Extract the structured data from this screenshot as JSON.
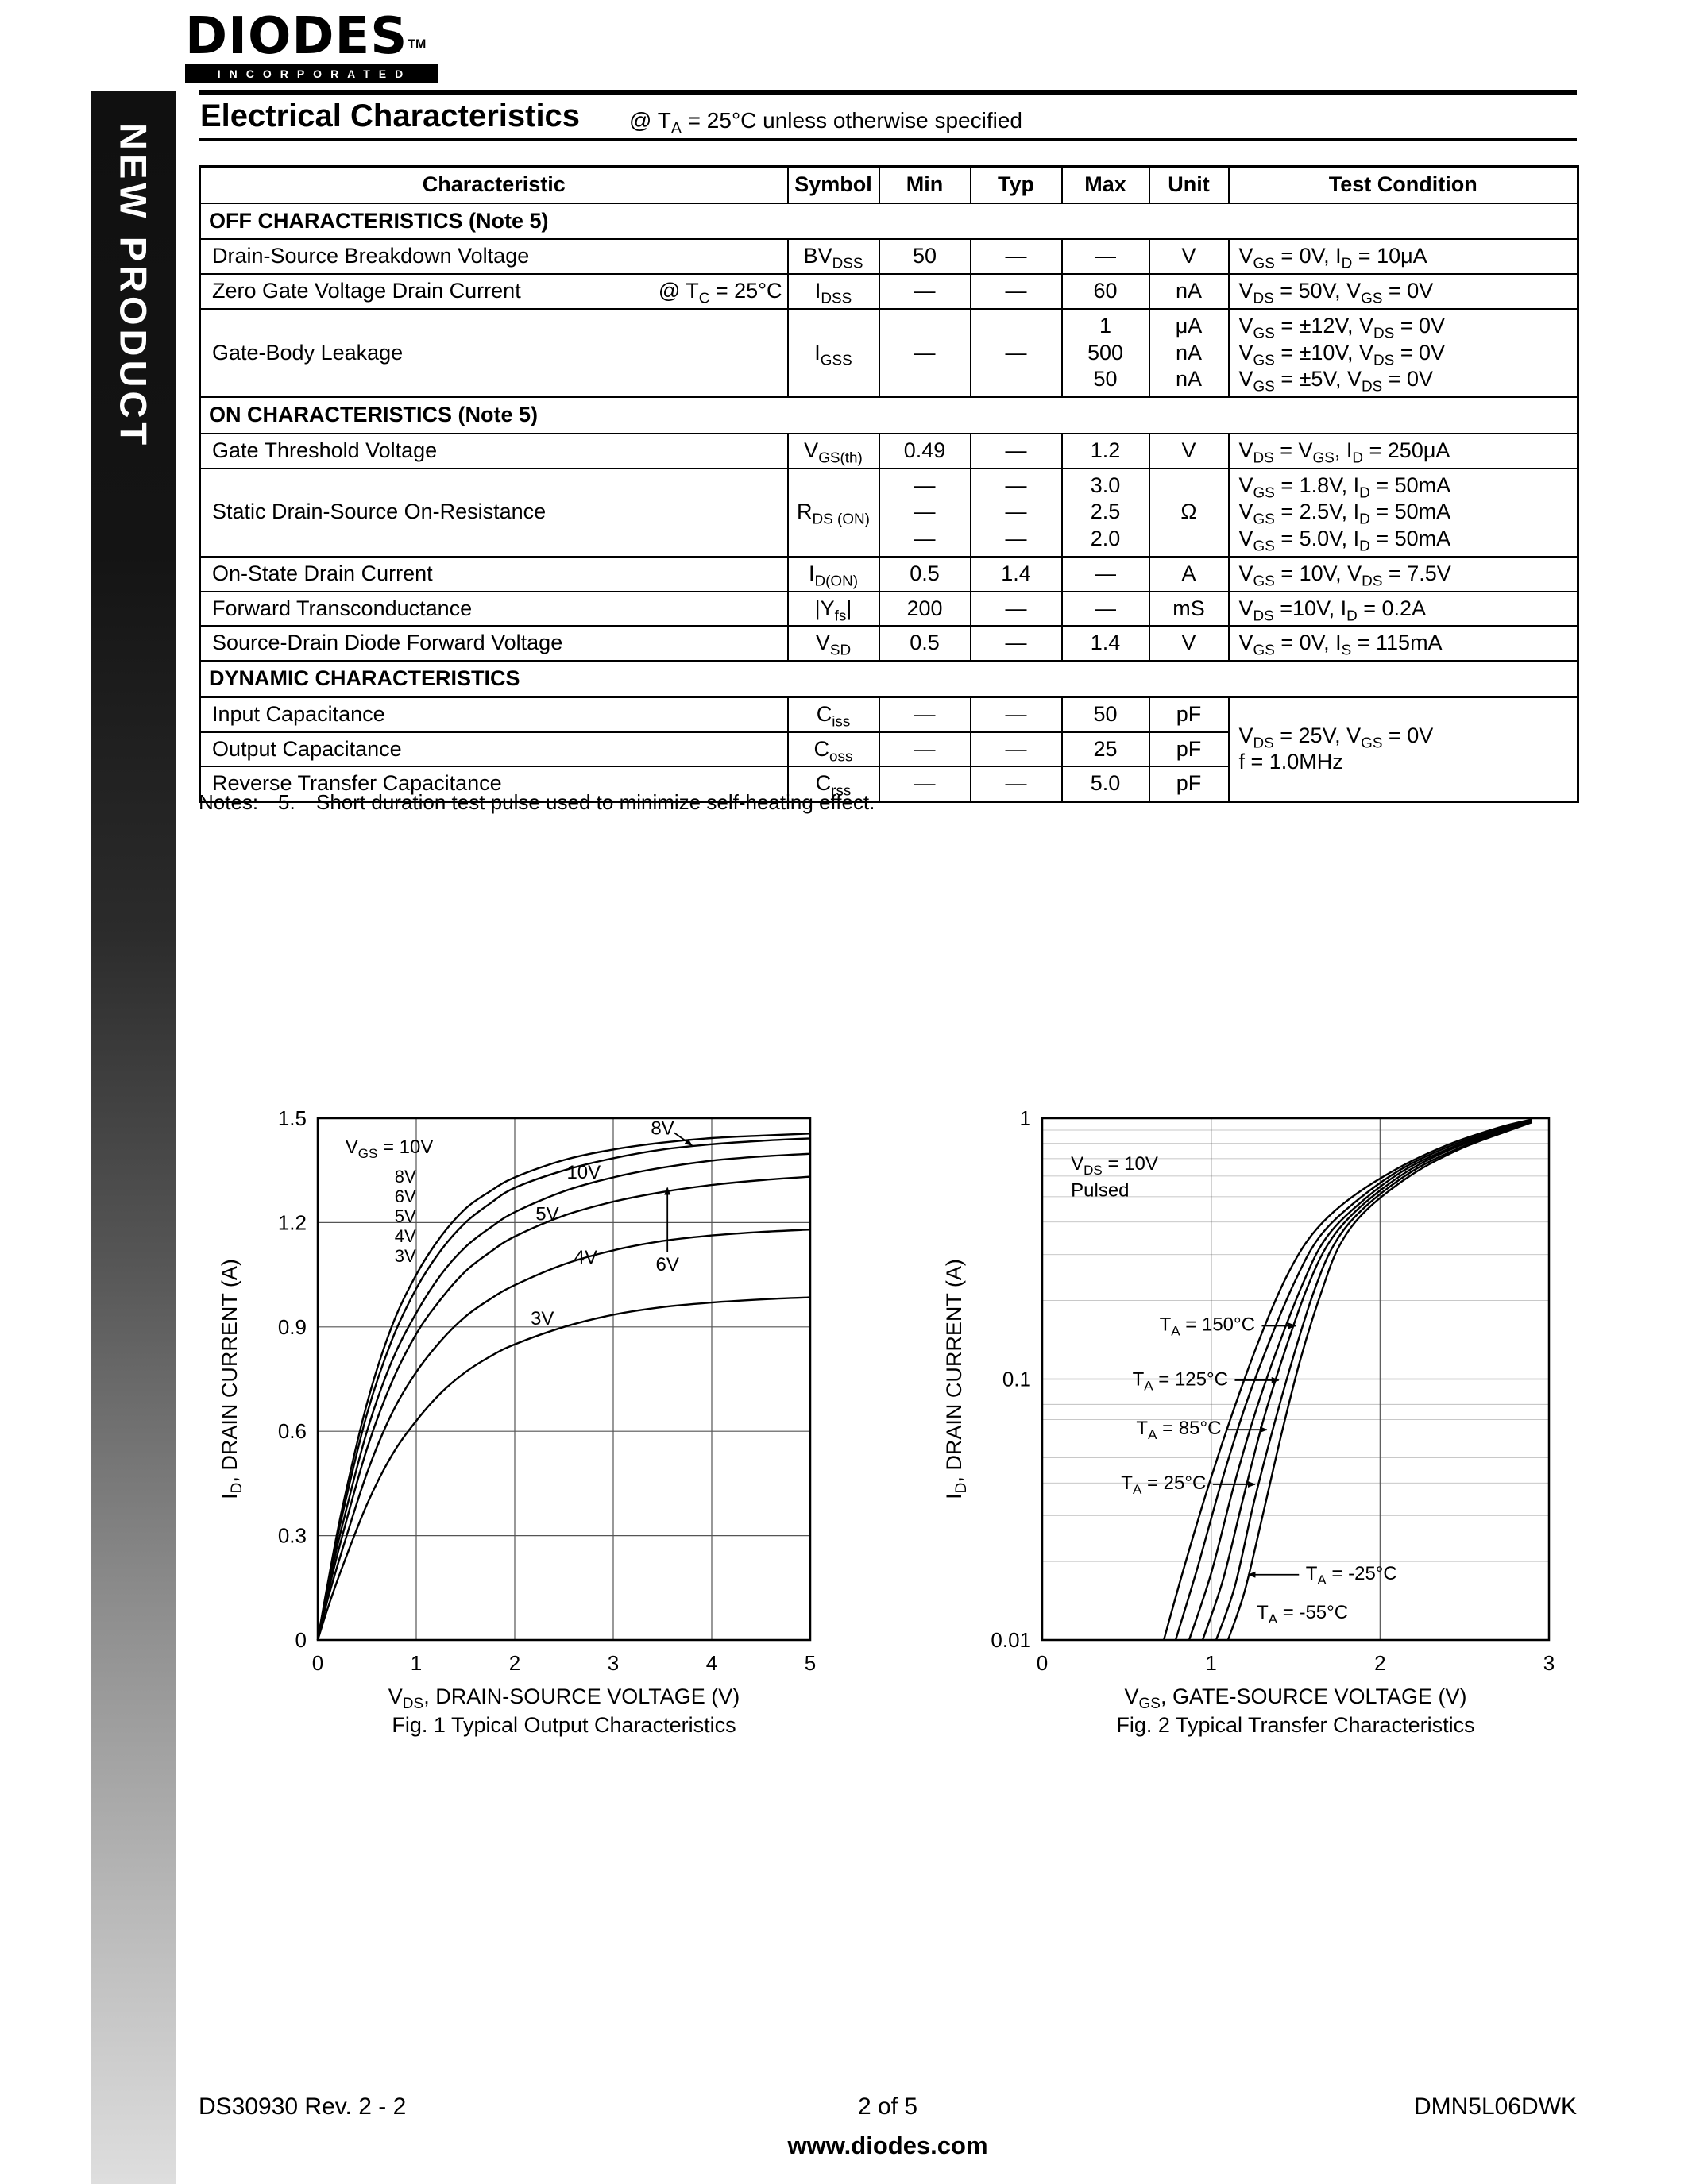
{
  "sidebar": {
    "label": "NEW PRODUCT"
  },
  "logo": {
    "brand": "DIODES",
    "tm": "TM",
    "incorporated": "INCORPORATED"
  },
  "header": {
    "title": "Electrical Characteristics",
    "condition": "@ T~A~ = 25°C unless otherwise specified"
  },
  "table": {
    "columns": [
      "Characteristic",
      "Symbol",
      "Min",
      "Typ",
      "Max",
      "Unit",
      "Test Condition"
    ],
    "rows": [
      {
        "type": "section",
        "label": "OFF CHARACTERISTICS (Note 5)"
      },
      {
        "type": "data",
        "characteristic": "Drain-Source Breakdown Voltage",
        "symbol": "BV~DSS~",
        "min": "50",
        "typ": "—",
        "max": "—",
        "unit": "V",
        "cond": [
          "V~GS~ = 0V, I~D~ = 10μA"
        ]
      },
      {
        "type": "data",
        "characteristic": "Zero Gate Voltage Drain Current",
        "char_note": "@ T~C~ = 25°C",
        "symbol": "I~DSS~",
        "min": "—",
        "typ": "—",
        "max": "60",
        "unit": "nA",
        "cond": [
          "V~DS~ = 50V, V~GS~ = 0V"
        ]
      },
      {
        "type": "data",
        "characteristic": "Gate-Body Leakage",
        "symbol": "I~GSS~",
        "min": "—",
        "typ": "—",
        "max": [
          "1",
          "500",
          "50"
        ],
        "unit": [
          "μA",
          "nA",
          "nA"
        ],
        "cond": [
          "V~GS~ = ±12V, V~DS~ = 0V",
          "V~GS~ = ±10V, V~DS~ = 0V",
          "V~GS~ = ±5V, V~DS~ = 0V"
        ]
      },
      {
        "type": "section",
        "label": "ON CHARACTERISTICS (Note 5)"
      },
      {
        "type": "data",
        "characteristic": "Gate Threshold Voltage",
        "symbol": "V~GS(th)~",
        "min": "0.49",
        "typ": "—",
        "max": "1.2",
        "unit": "V",
        "cond": [
          "V~DS~ = V~GS~, I~D~ = 250μA"
        ]
      },
      {
        "type": "data",
        "characteristic": "Static Drain-Source On-Resistance",
        "symbol": "R~DS (ON)~",
        "min": [
          "—",
          "—",
          "—"
        ],
        "typ": [
          "—",
          "—",
          "—"
        ],
        "max": [
          "3.0",
          "2.5",
          "2.0"
        ],
        "unit": "Ω",
        "cond": [
          "V~GS~ = 1.8V, I~D~ = 50mA",
          "V~GS~ = 2.5V, I~D~ = 50mA",
          "V~GS~ = 5.0V, I~D~ = 50mA"
        ]
      },
      {
        "type": "data",
        "characteristic": "On-State Drain Current",
        "symbol": "I~D(ON)~",
        "min": "0.5",
        "typ": "1.4",
        "max": "—",
        "unit": "A",
        "cond": [
          "V~GS~ = 10V, V~DS~ = 7.5V"
        ]
      },
      {
        "type": "data",
        "characteristic": "Forward Transconductance",
        "symbol": "|Y~fs~|",
        "min": "200",
        "typ": "—",
        "max": "—",
        "unit": "mS",
        "cond": [
          "V~DS~ =10V, I~D~ = 0.2A"
        ]
      },
      {
        "type": "data",
        "characteristic": "Source-Drain Diode Forward Voltage",
        "symbol": "V~SD~",
        "min": "0.5",
        "typ": "—",
        "max": "1.4",
        "unit": "V",
        "cond": [
          "V~GS~ = 0V, I~S~ = 115mA"
        ]
      },
      {
        "type": "section",
        "label": "DYNAMIC CHARACTERISTICS"
      },
      {
        "type": "data",
        "characteristic": "Input Capacitance",
        "symbol": "C~iss~",
        "min": "—",
        "typ": "—",
        "max": "50",
        "unit": "pF",
        "cond": [
          "V~DS~ = 25V, V~GS~ = 0V",
          "f = 1.0MHz"
        ],
        "cond_rowspan": 3
      },
      {
        "type": "data",
        "characteristic": "Output Capacitance",
        "symbol": "C~oss~",
        "min": "—",
        "typ": "—",
        "max": "25",
        "unit": "pF",
        "cond": null
      },
      {
        "type": "data",
        "characteristic": "Reverse Transfer Capacitance",
        "symbol": "C~rss~",
        "min": "—",
        "typ": "—",
        "max": "5.0",
        "unit": "pF",
        "cond": null
      }
    ]
  },
  "notes": {
    "label": "Notes:",
    "items": [
      {
        "num": "5.",
        "text": "Short duration test pulse used to minimize self-heating effect."
      }
    ]
  },
  "footer": {
    "doc": "DS30930 Rev. 2 - 2",
    "page": "2 of 5",
    "part": "DMN5L06DWK",
    "site": "www.diodes.com"
  },
  "chart_data": [
    {
      "type": "line",
      "name": "typical-output-characteristics",
      "fig_caption": "Fig. 1  Typical Output Characteristics",
      "xlabel": "V~DS~, DRAIN-SOURCE VOLTAGE (V)",
      "ylabel": "I~D~, DRAIN CURRENT (A)",
      "xlim": [
        0,
        5
      ],
      "ylim": [
        0,
        1.5
      ],
      "ylog": false,
      "xticks": [
        0,
        1,
        2,
        3,
        4,
        5
      ],
      "yticks": [
        0,
        0.3,
        0.6,
        0.9,
        1.2,
        1.5
      ],
      "grid": true,
      "legend": {
        "title": "V~GS~ = 10V",
        "items": [
          "8V",
          "6V",
          "5V",
          "4V",
          "3V"
        ],
        "x": 0.28,
        "y": 1.4,
        "item_x": 0.78,
        "item_y": 1.315,
        "dy": 0.057
      },
      "series": [
        {
          "name": "VGS = 10V",
          "x": [
            0,
            0.1,
            0.25,
            0.5,
            0.75,
            1,
            1.25,
            1.5,
            1.75,
            2,
            2.5,
            3,
            3.5,
            4,
            4.5,
            5
          ],
          "y": [
            0,
            0.16,
            0.38,
            0.68,
            0.9,
            1.05,
            1.16,
            1.24,
            1.29,
            1.33,
            1.38,
            1.41,
            1.43,
            1.443,
            1.45,
            1.456
          ]
        },
        {
          "name": "VGS = 8V",
          "x": [
            0,
            0.1,
            0.25,
            0.5,
            0.75,
            1,
            1.25,
            1.5,
            1.75,
            2,
            2.5,
            3,
            3.5,
            4,
            4.5,
            5
          ],
          "y": [
            0,
            0.155,
            0.36,
            0.65,
            0.86,
            1.01,
            1.12,
            1.2,
            1.255,
            1.3,
            1.35,
            1.385,
            1.41,
            1.425,
            1.435,
            1.442
          ]
        },
        {
          "name": "VGS = 6V",
          "x": [
            0,
            0.1,
            0.25,
            0.5,
            0.75,
            1,
            1.25,
            1.5,
            1.75,
            2,
            2.5,
            3,
            3.5,
            4,
            4.5,
            5
          ],
          "y": [
            0,
            0.145,
            0.33,
            0.6,
            0.8,
            0.94,
            1.05,
            1.13,
            1.185,
            1.23,
            1.29,
            1.33,
            1.358,
            1.378,
            1.39,
            1.398
          ]
        },
        {
          "name": "VGS = 5V",
          "x": [
            0,
            0.1,
            0.25,
            0.5,
            0.75,
            1,
            1.25,
            1.5,
            1.75,
            2,
            2.5,
            3,
            3.5,
            4,
            4.5,
            5
          ],
          "y": [
            0,
            0.13,
            0.3,
            0.55,
            0.74,
            0.88,
            0.98,
            1.06,
            1.115,
            1.16,
            1.22,
            1.26,
            1.288,
            1.308,
            1.322,
            1.332
          ]
        },
        {
          "name": "VGS = 4V",
          "x": [
            0,
            0.1,
            0.25,
            0.5,
            0.75,
            1,
            1.25,
            1.5,
            1.75,
            2,
            2.5,
            3,
            3.5,
            4,
            4.5,
            5
          ],
          "y": [
            0,
            0.115,
            0.26,
            0.48,
            0.65,
            0.77,
            0.86,
            0.93,
            0.98,
            1.02,
            1.08,
            1.12,
            1.147,
            1.163,
            1.173,
            1.18
          ]
        },
        {
          "name": "VGS = 3V",
          "x": [
            0,
            0.1,
            0.25,
            0.5,
            0.75,
            1,
            1.25,
            1.5,
            1.75,
            2,
            2.5,
            3,
            3.5,
            4,
            4.5,
            5
          ],
          "y": [
            0,
            0.09,
            0.21,
            0.39,
            0.53,
            0.63,
            0.71,
            0.77,
            0.815,
            0.85,
            0.9,
            0.935,
            0.957,
            0.97,
            0.979,
            0.985
          ]
        }
      ],
      "annotations": [
        {
          "text": "8V",
          "x": 3.5,
          "y": 1.472,
          "anchor": "middle"
        },
        {
          "text": "10V",
          "x": 2.7,
          "y": 1.345,
          "anchor": "middle"
        },
        {
          "text": "5V",
          "x": 2.33,
          "y": 1.225,
          "anchor": "middle"
        },
        {
          "text": "4V",
          "x": 2.72,
          "y": 1.1,
          "anchor": "middle"
        },
        {
          "text": "6V",
          "x": 3.55,
          "y": 1.08,
          "anchor": "middle"
        },
        {
          "text": "3V",
          "x": 2.28,
          "y": 0.925,
          "anchor": "middle"
        }
      ],
      "arrows": [
        {
          "x1": 3.62,
          "y1": 1.458,
          "x2": 3.8,
          "y2": 1.422
        },
        {
          "x1": 3.55,
          "y1": 1.115,
          "x2": 3.55,
          "y2": 1.3
        }
      ]
    },
    {
      "type": "line",
      "name": "typical-transfer-characteristics",
      "fig_caption": "Fig. 2  Typical Transfer Characteristics",
      "xlabel": "V~GS~, GATE-SOURCE VOLTAGE (V)",
      "ylabel": "I~D~, DRAIN CURRENT (A)",
      "xlim": [
        0,
        3
      ],
      "ylim": [
        0.01,
        1
      ],
      "ylog": true,
      "xticks": [
        0,
        1,
        2,
        3
      ],
      "yticks": [
        0.01,
        0.1,
        1
      ],
      "yminor": [
        0.02,
        0.03,
        0.04,
        0.05,
        0.06,
        0.07,
        0.08,
        0.09,
        0.2,
        0.3,
        0.4,
        0.5,
        0.6,
        0.7,
        0.8,
        0.9
      ],
      "grid": true,
      "series": [
        {
          "name": "TA = 150C",
          "x": [
            0.72,
            0.85,
            1.0,
            1.15,
            1.3,
            1.45,
            1.6,
            1.8,
            2.1,
            2.4,
            2.7,
            2.9
          ],
          "y": [
            0.01,
            0.02,
            0.042,
            0.082,
            0.15,
            0.25,
            0.36,
            0.48,
            0.64,
            0.79,
            0.92,
            0.99
          ]
        },
        {
          "name": "TA = 125C",
          "x": [
            0.79,
            0.92,
            1.06,
            1.2,
            1.35,
            1.5,
            1.64,
            1.84,
            2.12,
            2.42,
            2.72,
            2.9
          ],
          "y": [
            0.01,
            0.019,
            0.04,
            0.078,
            0.142,
            0.24,
            0.35,
            0.47,
            0.635,
            0.785,
            0.915,
            0.985
          ]
        },
        {
          "name": "TA = 85C",
          "x": [
            0.87,
            1.0,
            1.13,
            1.26,
            1.4,
            1.54,
            1.67,
            1.86,
            2.14,
            2.44,
            2.73,
            2.9
          ],
          "y": [
            0.01,
            0.018,
            0.038,
            0.074,
            0.135,
            0.23,
            0.34,
            0.46,
            0.63,
            0.78,
            0.91,
            0.98
          ]
        },
        {
          "name": "TA = 25C",
          "x": [
            0.95,
            1.07,
            1.19,
            1.31,
            1.44,
            1.57,
            1.7,
            1.88,
            2.16,
            2.45,
            2.74,
            2.9
          ],
          "y": [
            0.01,
            0.017,
            0.035,
            0.07,
            0.13,
            0.225,
            0.335,
            0.455,
            0.625,
            0.775,
            0.905,
            0.975
          ]
        },
        {
          "name": "TA = -25C",
          "x": [
            1.03,
            1.14,
            1.25,
            1.37,
            1.49,
            1.61,
            1.73,
            1.9,
            2.18,
            2.47,
            2.75,
            2.9
          ],
          "y": [
            0.01,
            0.016,
            0.033,
            0.066,
            0.124,
            0.218,
            0.33,
            0.45,
            0.62,
            0.77,
            0.9,
            0.97
          ]
        },
        {
          "name": "TA = -55C",
          "x": [
            1.1,
            1.2,
            1.31,
            1.42,
            1.53,
            1.65,
            1.76,
            1.92,
            2.2,
            2.48,
            2.76,
            2.9
          ],
          "y": [
            0.01,
            0.0155,
            0.031,
            0.063,
            0.12,
            0.213,
            0.325,
            0.445,
            0.615,
            0.765,
            0.895,
            0.965
          ]
        }
      ],
      "annotations": [
        {
          "text": "V~DS~ = 10V",
          "x": 0.17,
          "y": 0.67,
          "anchor": "start"
        },
        {
          "text": "Pulsed",
          "x": 0.17,
          "y": 0.53,
          "anchor": "start"
        },
        {
          "text": "T~A~ = 150°C",
          "x": 1.26,
          "y": 0.162,
          "anchor": "end"
        },
        {
          "text": "T~A~ = 125°C",
          "x": 1.1,
          "y": 0.1,
          "anchor": "end"
        },
        {
          "text": "T~A~ = 85°C",
          "x": 1.06,
          "y": 0.065,
          "anchor": "end"
        },
        {
          "text": "T~A~ = 25°C",
          "x": 0.97,
          "y": 0.04,
          "anchor": "end"
        },
        {
          "text": "T~A~ = -25°C",
          "x": 1.56,
          "y": 0.018,
          "anchor": "start"
        },
        {
          "text": "T~A~ = -55°C",
          "x": 1.27,
          "y": 0.0128,
          "anchor": "start"
        }
      ],
      "arrows": [
        {
          "x1": 1.3,
          "y1": 0.16,
          "x2": 1.5,
          "y2": 0.16
        },
        {
          "x1": 1.14,
          "y1": 0.099,
          "x2": 1.4,
          "y2": 0.099
        },
        {
          "x1": 1.1,
          "y1": 0.064,
          "x2": 1.33,
          "y2": 0.064
        },
        {
          "x1": 1.01,
          "y1": 0.0395,
          "x2": 1.26,
          "y2": 0.0395
        },
        {
          "x1": 1.52,
          "y1": 0.0178,
          "x2": 1.22,
          "y2": 0.0178
        }
      ]
    }
  ]
}
